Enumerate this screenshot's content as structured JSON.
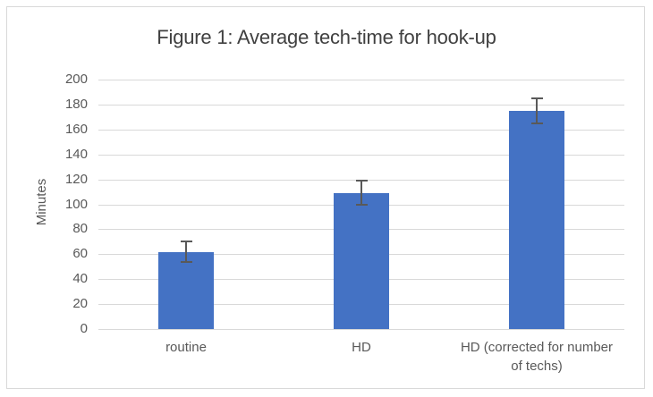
{
  "chart_data": {
    "type": "bar",
    "title": "Figure 1: Average tech-time for hook-up",
    "xlabel": "",
    "ylabel": "Minutes",
    "categories": [
      "routine",
      "HD",
      "HD (corrected for number of techs)"
    ],
    "category_label_lines": [
      [
        "routine"
      ],
      [
        "HD"
      ],
      [
        "HD (corrected for number",
        "of techs)"
      ]
    ],
    "values": [
      62,
      109,
      175
    ],
    "error_bars": {
      "low": [
        54,
        100,
        165
      ],
      "high": [
        70,
        119,
        185
      ]
    },
    "ylim": [
      0,
      200
    ],
    "yticks": [
      0,
      20,
      40,
      60,
      80,
      100,
      120,
      140,
      160,
      180,
      200
    ],
    "grid": true,
    "legend": "none",
    "colors": {
      "bar": "#4472C4",
      "error_bar": "#595959",
      "gridline": "#D9D9D9",
      "axis_text": "#595959",
      "title_text": "#404040",
      "frame_border": "#D9D9D9",
      "background": "#FFFFFF"
    }
  }
}
